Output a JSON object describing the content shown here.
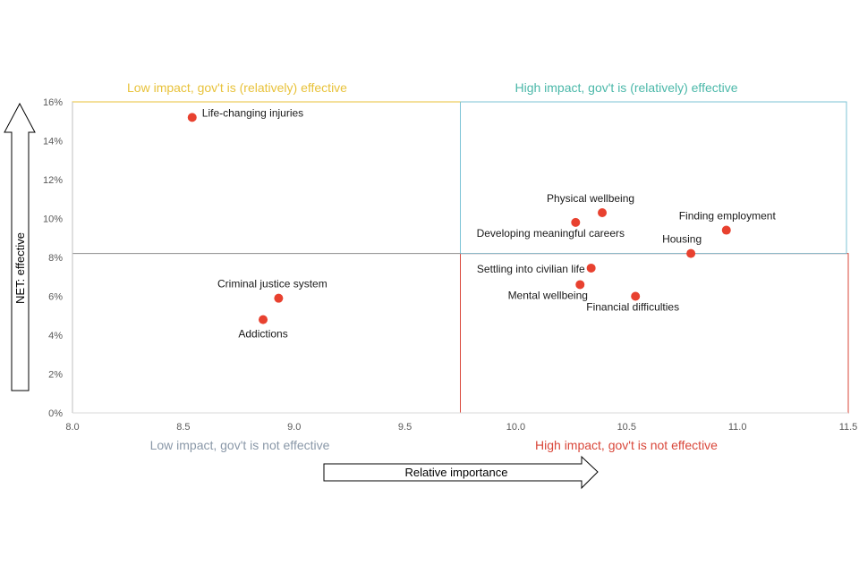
{
  "chart_data": {
    "type": "scatter",
    "title": "",
    "xlabel": "Relative importance",
    "ylabel": "NET: effective",
    "xlim": [
      8.0,
      11.5
    ],
    "ylim": [
      0,
      16
    ],
    "x_ticks": [
      "8.0",
      "8.5",
      "9.0",
      "9.5",
      "10.0",
      "10.5",
      "11.0",
      "11.5"
    ],
    "x_tick_values": [
      8.0,
      8.5,
      9.0,
      9.5,
      10.0,
      10.5,
      11.0,
      11.5
    ],
    "y_ticks": [
      "0%",
      "2%",
      "4%",
      "6%",
      "8%",
      "10%",
      "12%",
      "14%",
      "16%"
    ],
    "y_tick_values": [
      0,
      2,
      4,
      6,
      8,
      10,
      12,
      14,
      16
    ],
    "grid": false,
    "quadrant_split": {
      "x": 9.75,
      "y": 8.2
    },
    "quadrants": [
      {
        "id": "top-left",
        "label": "Low impact, gov't is (relatively) effective",
        "color": "#e8c23a"
      },
      {
        "id": "top-right",
        "label": "High impact, gov't is (relatively) effective",
        "color": "#4bb8a9"
      },
      {
        "id": "bottom-left",
        "label": "Low impact, gov't is not effective",
        "color": "#8a98a8"
      },
      {
        "id": "bottom-right",
        "label": "High impact, gov't is not effective",
        "color": "#d9473a"
      }
    ],
    "point_color": "#e8412f",
    "points": [
      {
        "label": "Life-changing injuries",
        "x": 8.54,
        "y": 15.2,
        "anchor": "right"
      },
      {
        "label": "Criminal justice system",
        "x": 8.93,
        "y": 5.9,
        "anchor": "above"
      },
      {
        "label": "Addictions",
        "x": 8.86,
        "y": 4.8,
        "anchor": "below"
      },
      {
        "label": "Physical wellbeing",
        "x": 10.39,
        "y": 10.3,
        "anchor": "above"
      },
      {
        "label": "Developing meaningful careers",
        "x": 10.27,
        "y": 9.8,
        "anchor": "below"
      },
      {
        "label": "Finding employment",
        "x": 10.95,
        "y": 9.4,
        "anchor": "above"
      },
      {
        "label": "Housing",
        "x": 10.79,
        "y": 8.2,
        "anchor": "above"
      },
      {
        "label": "Settling into civilian life",
        "x": 10.34,
        "y": 7.45,
        "anchor": "left"
      },
      {
        "label": "Mental wellbeing",
        "x": 10.29,
        "y": 6.6,
        "anchor": "below"
      },
      {
        "label": "Financial difficulties",
        "x": 10.54,
        "y": 6.0,
        "anchor": "below"
      }
    ]
  }
}
